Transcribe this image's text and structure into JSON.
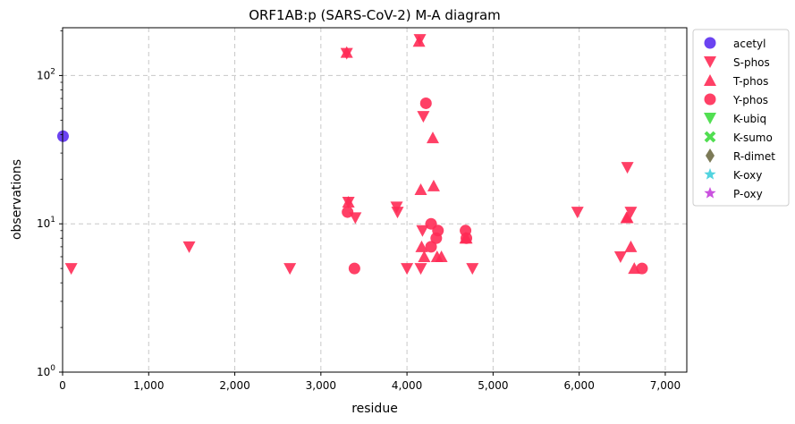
{
  "chart_data": {
    "type": "scatter",
    "title": "ORF1AB:p (SARS-CoV-2) M-A diagram",
    "xlabel": "residue",
    "ylabel": "observations",
    "xlim": [
      0,
      7250
    ],
    "ylim": [
      1,
      210
    ],
    "yscale": "log",
    "grid": true,
    "legend_position": "outside-right",
    "x_ticks": [
      0,
      1000,
      2000,
      3000,
      4000,
      5000,
      6000,
      7000
    ],
    "x_tick_labels": [
      "0",
      "1,000",
      "2,000",
      "3,000",
      "4,000",
      "5,000",
      "6,000",
      "7,000"
    ],
    "y_ticks": [
      1,
      10,
      100
    ],
    "series": [
      {
        "name": "acetyl",
        "marker": "circle",
        "color": "#5b2ff0",
        "points": [
          [
            5,
            39
          ]
        ]
      },
      {
        "name": "S-phos",
        "marker": "triangle-down",
        "color": "#ff2b55",
        "points": [
          [
            100,
            5
          ],
          [
            1470,
            7
          ],
          [
            2640,
            5
          ],
          [
            3300,
            141
          ],
          [
            3320,
            14
          ],
          [
            3400,
            11
          ],
          [
            3880,
            13
          ],
          [
            3890,
            12
          ],
          [
            4000,
            5
          ],
          [
            4150,
            175
          ],
          [
            4160,
            5
          ],
          [
            4180,
            9
          ],
          [
            4190,
            53
          ],
          [
            4760,
            5
          ],
          [
            5980,
            12
          ],
          [
            6480,
            6
          ],
          [
            6560,
            24
          ],
          [
            6600,
            12
          ]
        ]
      },
      {
        "name": "T-phos",
        "marker": "triangle-up",
        "color": "#ff2b55",
        "points": [
          [
            3300,
            143
          ],
          [
            3320,
            14
          ],
          [
            4140,
            170
          ],
          [
            4160,
            17
          ],
          [
            4170,
            7
          ],
          [
            4200,
            6
          ],
          [
            4300,
            38
          ],
          [
            4310,
            18
          ],
          [
            4350,
            6
          ],
          [
            4400,
            6
          ],
          [
            4680,
            8
          ],
          [
            4690,
            8
          ],
          [
            6550,
            11
          ],
          [
            6560,
            11
          ],
          [
            6600,
            7
          ],
          [
            6640,
            5
          ]
        ]
      },
      {
        "name": "Y-phos",
        "marker": "circle",
        "color": "#ff2b55",
        "points": [
          [
            3310,
            12
          ],
          [
            3390,
            5
          ],
          [
            4220,
            65
          ],
          [
            4280,
            10
          ],
          [
            4280,
            7
          ],
          [
            4340,
            8
          ],
          [
            4360,
            9
          ],
          [
            4680,
            9
          ],
          [
            4690,
            8
          ],
          [
            6730,
            5
          ]
        ]
      },
      {
        "name": "K-ubiq",
        "marker": "triangle-down",
        "color": "#3fdb3f",
        "points": []
      },
      {
        "name": "K-sumo",
        "marker": "x",
        "color": "#3fdb3f",
        "points": []
      },
      {
        "name": "R-dimet",
        "marker": "diamond",
        "color": "#6e6b45",
        "points": []
      },
      {
        "name": "K-oxy",
        "marker": "star",
        "color": "#3fcfdb",
        "points": []
      },
      {
        "name": "P-oxy",
        "marker": "star",
        "color": "#c43fdb",
        "points": []
      }
    ]
  }
}
